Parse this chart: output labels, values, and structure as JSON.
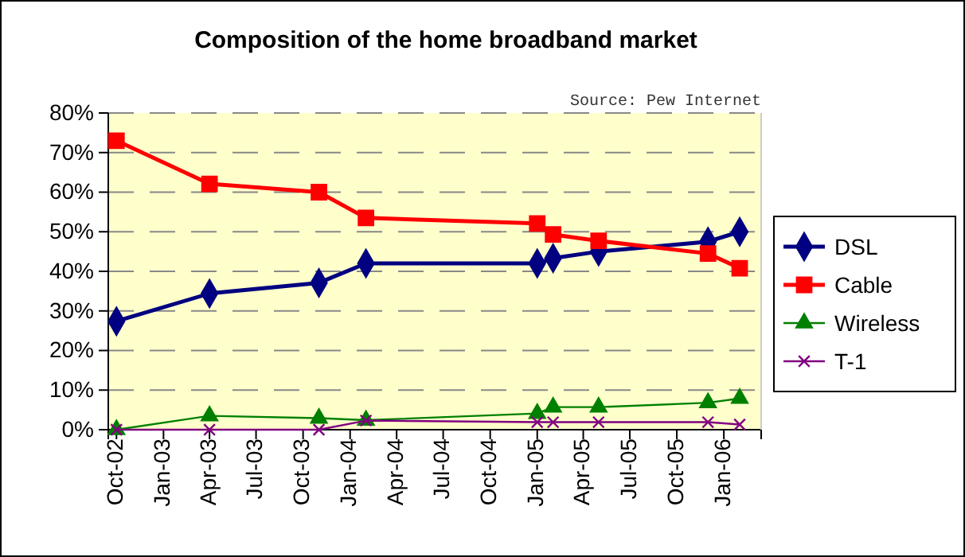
{
  "chart_data": {
    "type": "line",
    "title": "Composition of the home broadband market",
    "annotations": [
      "Source: Pew Internet"
    ],
    "x": [
      "2002-10",
      "2003-04",
      "2003-11",
      "2004-02",
      "2005-01",
      "2005-02",
      "2005-05",
      "2005-12",
      "2006-02"
    ],
    "xlim": [
      "2002-09-15",
      "2006-03-15"
    ],
    "xticks": [
      {
        "value": "2002-10",
        "label": "Oct-02"
      },
      {
        "value": "2003-01",
        "label": "Jan-03"
      },
      {
        "value": "2003-04",
        "label": "Apr-03"
      },
      {
        "value": "2003-07",
        "label": "Jul-03"
      },
      {
        "value": "2003-10",
        "label": "Oct-03"
      },
      {
        "value": "2004-01",
        "label": "Jan-04"
      },
      {
        "value": "2004-04",
        "label": "Apr-04"
      },
      {
        "value": "2004-07",
        "label": "Jul-04"
      },
      {
        "value": "2004-10",
        "label": "Oct-04"
      },
      {
        "value": "2005-01",
        "label": "Jan-05"
      },
      {
        "value": "2005-04",
        "label": "Apr-05"
      },
      {
        "value": "2005-07",
        "label": "Jul-05"
      },
      {
        "value": "2005-10",
        "label": "Oct-05"
      },
      {
        "value": "2006-01",
        "label": "Jan-06"
      }
    ],
    "ylim": [
      0,
      80
    ],
    "yticks": [
      {
        "value": 0,
        "label": "0%"
      },
      {
        "value": 10,
        "label": "10%"
      },
      {
        "value": 20,
        "label": "20%"
      },
      {
        "value": 30,
        "label": "30%"
      },
      {
        "value": 40,
        "label": "40%"
      },
      {
        "value": 50,
        "label": "50%"
      },
      {
        "value": 60,
        "label": "60%"
      },
      {
        "value": 70,
        "label": "70%"
      },
      {
        "value": 80,
        "label": "80%"
      }
    ],
    "grid": "y",
    "legend": "right",
    "series": [
      {
        "name": "DSL",
        "color": "#000080",
        "marker": "diamond",
        "values": [
          27.4,
          34.4,
          37.1,
          42,
          42,
          43.3,
          45,
          47.5,
          50
        ]
      },
      {
        "name": "Cable",
        "color": "#ff0000",
        "marker": "square",
        "values": [
          73,
          62.1,
          60,
          53.5,
          52.1,
          49.3,
          47.7,
          44.5,
          40.8
        ]
      },
      {
        "name": "Wireless",
        "color": "#008000",
        "marker": "triangle",
        "values": [
          0,
          3.5,
          2.9,
          2.4,
          4.1,
          5.7,
          5.7,
          6.8,
          7.9
        ]
      },
      {
        "name": "T-1",
        "color": "#800080",
        "marker": "cross",
        "values": [
          0,
          0,
          0,
          2.3,
          1.9,
          1.9,
          1.9,
          1.9,
          1.3
        ]
      }
    ]
  }
}
